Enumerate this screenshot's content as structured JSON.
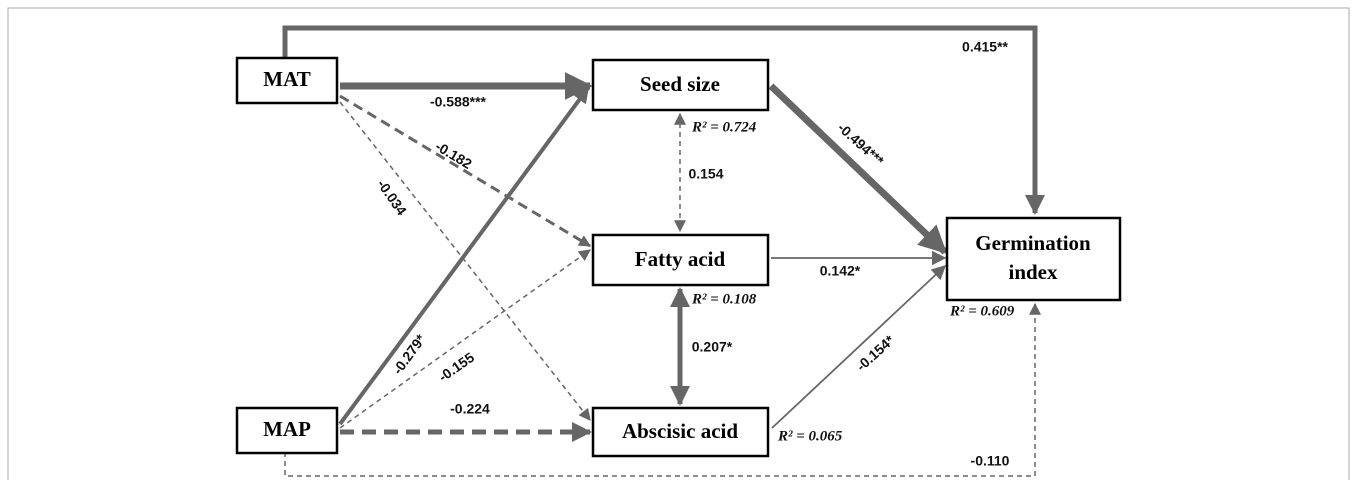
{
  "nodes": [
    {
      "label": "MAT"
    },
    {
      "label": "MAP"
    },
    {
      "label": "Seed size"
    },
    {
      "label": "Fatty acid"
    },
    {
      "label": "Abscisic acid"
    },
    {
      "label": [
        "Germination",
        "index"
      ]
    }
  ],
  "edges": [
    {
      "from": "MAT",
      "to": "Germination index",
      "label": "0.415**"
    },
    {
      "from": "MAT",
      "to": "Seed size",
      "label": "-0.588***"
    },
    {
      "from": "MAT",
      "to": "Fatty acid",
      "label": "-0.182"
    },
    {
      "from": "MAT",
      "to": "Abscisic acid",
      "label": "-0.034"
    },
    {
      "from": "MAP",
      "to": "Seed size",
      "label": "-0.279*"
    },
    {
      "from": "MAP",
      "to": "Fatty acid",
      "label": "-0.155"
    },
    {
      "from": "MAP",
      "to": "Abscisic acid",
      "label": "-0.224"
    },
    {
      "from": "Seed size",
      "to": "Fatty acid",
      "label": "0.154"
    },
    {
      "from": "Fatty acid",
      "to": "Abscisic acid",
      "label": "0.207*"
    },
    {
      "from": "Seed size",
      "to": "Germination index",
      "label": "-0.494***"
    },
    {
      "from": "Fatty acid",
      "to": "Germination index",
      "label": "0.142*"
    },
    {
      "from": "Abscisic acid",
      "to": "Germination index",
      "label": "-0.154*"
    },
    {
      "from": "MAP",
      "to": "Germination index",
      "label": "-0.110"
    }
  ],
  "r2": [
    "R² = 0.724",
    "R² = 0.108",
    "R² = 0.065",
    "R² = 0.609"
  ]
}
